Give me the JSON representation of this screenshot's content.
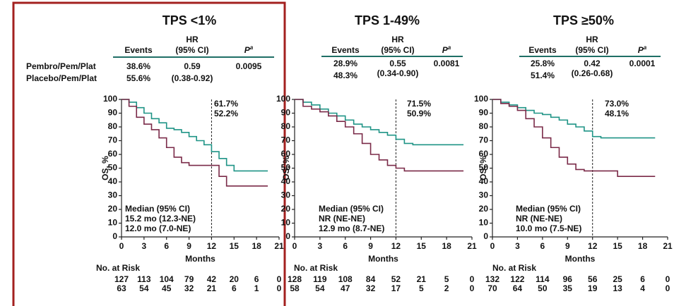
{
  "chart_data": [
    {
      "type": "line",
      "step": true,
      "title": "TPS <1%",
      "stats": {
        "events_header": "Events",
        "hr_header": "HR",
        "ci_header": "(95% CI)",
        "p_header": "P",
        "p_sup": "a",
        "rows": [
          {
            "events": "38.6%",
            "hr": "0.59",
            "ci": "(0.38-0.92)",
            "p": "0.0095"
          },
          {
            "events": "55.6%"
          }
        ]
      },
      "xlabel": "Months",
      "ylabel": "OS, %",
      "xlim": [
        0,
        21
      ],
      "xticks": [
        0,
        3,
        6,
        9,
        12,
        15,
        18,
        21
      ],
      "ylim": [
        0,
        100
      ],
      "yticks": [
        0,
        10,
        20,
        30,
        40,
        50,
        60,
        70,
        80,
        90,
        100
      ],
      "landmark": 12,
      "median_title": "Median (95% CI)",
      "risk_title": "No. at Risk",
      "series": [
        {
          "name": "Pembro/Pem/Plat",
          "color": "#1f9486",
          "landmark_label": "61.7%",
          "median": "15.2 mo (12.3-NE)",
          "x": [
            0,
            1,
            2,
            3,
            4,
            5,
            6,
            7,
            8,
            9,
            10,
            11,
            12,
            13,
            14,
            15,
            16,
            17,
            18,
            19,
            19.5
          ],
          "values": [
            100,
            98,
            94,
            90,
            86,
            83,
            79,
            78,
            76,
            73,
            70,
            67,
            62,
            57,
            52,
            48,
            48,
            48,
            48,
            48,
            48
          ],
          "at_risk": [
            127,
            113,
            104,
            79,
            42,
            20,
            6,
            0
          ]
        },
        {
          "name": "Placebo/Pem/Plat",
          "color": "#7a2a48",
          "landmark_label": "52.2%",
          "median": "12.0 mo (7.0-NE)",
          "x": [
            0,
            1,
            2,
            3,
            4,
            5,
            6,
            7,
            8,
            9,
            10,
            11,
            12,
            13,
            14,
            15,
            16,
            17,
            18,
            19,
            19.5
          ],
          "values": [
            100,
            95,
            87,
            82,
            78,
            72,
            65,
            58,
            54,
            52,
            52,
            52,
            52,
            44,
            37,
            37,
            37,
            37,
            37,
            37,
            37
          ],
          "at_risk": [
            63,
            54,
            45,
            32,
            21,
            6,
            1,
            0
          ]
        }
      ]
    },
    {
      "type": "line",
      "step": true,
      "title": "TPS 1-49%",
      "stats": {
        "events_header": "Events",
        "hr_header": "HR",
        "ci_header": "(95% CI)",
        "p_header": "P",
        "p_sup": "a",
        "rows": [
          {
            "events": "28.9%",
            "hr": "0.55",
            "ci": "(0.34-0.90)",
            "p": "0.0081"
          },
          {
            "events": "48.3%"
          }
        ]
      },
      "xlabel": "Months",
      "ylabel": "OS, %",
      "xlim": [
        0,
        21
      ],
      "xticks": [
        0,
        3,
        6,
        9,
        12,
        15,
        18,
        21
      ],
      "ylim": [
        0,
        100
      ],
      "yticks": [
        0,
        10,
        20,
        30,
        40,
        50,
        60,
        70,
        80,
        90,
        100
      ],
      "landmark": 12,
      "median_title": "Median (95% CI)",
      "risk_title": "No. at Risk",
      "series": [
        {
          "color": "#1f9486",
          "landmark_label": "71.5%",
          "median": "NR (NE-NE)",
          "x": [
            0,
            1,
            2,
            3,
            4,
            5,
            6,
            7,
            8,
            9,
            10,
            11,
            12,
            13,
            14,
            15,
            16,
            17,
            18,
            19,
            20
          ],
          "values": [
            100,
            98,
            96,
            93,
            90,
            88,
            85,
            82,
            80,
            78,
            76,
            74,
            71,
            68,
            67,
            67,
            67,
            67,
            67,
            67,
            67
          ],
          "at_risk": [
            128,
            119,
            108,
            84,
            52,
            21,
            5,
            0
          ]
        },
        {
          "color": "#7a2a48",
          "landmark_label": "50.9%",
          "median": "12.9 mo (8.7-NE)",
          "x": [
            0,
            1,
            2,
            3,
            4,
            5,
            6,
            7,
            8,
            9,
            10,
            11,
            12,
            13,
            14,
            15,
            16,
            17,
            18,
            19,
            20
          ],
          "values": [
            100,
            95,
            93,
            91,
            88,
            84,
            80,
            75,
            68,
            60,
            56,
            52,
            50,
            48,
            48,
            48,
            48,
            48,
            48,
            48,
            48
          ],
          "at_risk": [
            58,
            54,
            47,
            32,
            17,
            5,
            2,
            0
          ]
        }
      ]
    },
    {
      "type": "line",
      "step": true,
      "title": "TPS ≥50%",
      "stats": {
        "events_header": "Events",
        "hr_header": "HR",
        "ci_header": "(95% CI)",
        "p_header": "P",
        "p_sup": "a",
        "rows": [
          {
            "events": "25.8%",
            "hr": "0.42",
            "ci": "(0.26-0.68)",
            "p": "0.0001"
          },
          {
            "events": "51.4%"
          }
        ]
      },
      "xlabel": "Months",
      "ylabel": "OS, %",
      "xlim": [
        0,
        21
      ],
      "xticks": [
        0,
        3,
        6,
        9,
        12,
        15,
        18,
        21
      ],
      "ylim": [
        0,
        100
      ],
      "yticks": [
        0,
        10,
        20,
        30,
        40,
        50,
        60,
        70,
        80,
        90,
        100
      ],
      "landmark": 12,
      "median_title": "Median (95% CI)",
      "risk_title": "No. at Risk",
      "series": [
        {
          "color": "#1f9486",
          "landmark_label": "73.0%",
          "median": "NR (NE-NE)",
          "x": [
            0,
            1,
            2,
            3,
            4,
            5,
            6,
            7,
            8,
            9,
            10,
            11,
            12,
            13,
            14,
            15,
            16,
            17,
            18,
            19,
            19.5
          ],
          "values": [
            100,
            98,
            96,
            94,
            92,
            90,
            89,
            87,
            85,
            82,
            80,
            77,
            73,
            72,
            72,
            72,
            72,
            72,
            72,
            72,
            72
          ],
          "at_risk": [
            132,
            122,
            114,
            96,
            56,
            25,
            6,
            0
          ]
        },
        {
          "color": "#7a2a48",
          "landmark_label": "48.1%",
          "median": "10.0 mo (7.5-NE)",
          "x": [
            0,
            1,
            2,
            3,
            4,
            5,
            6,
            7,
            8,
            9,
            10,
            11,
            12,
            13,
            14,
            15,
            16,
            17,
            18,
            19,
            19.5
          ],
          "values": [
            100,
            97,
            95,
            92,
            86,
            80,
            72,
            65,
            58,
            53,
            49,
            48,
            48,
            48,
            48,
            44,
            44,
            44,
            44,
            44,
            44
          ],
          "at_risk": [
            70,
            64,
            50,
            35,
            19,
            13,
            4,
            0
          ]
        }
      ]
    }
  ]
}
